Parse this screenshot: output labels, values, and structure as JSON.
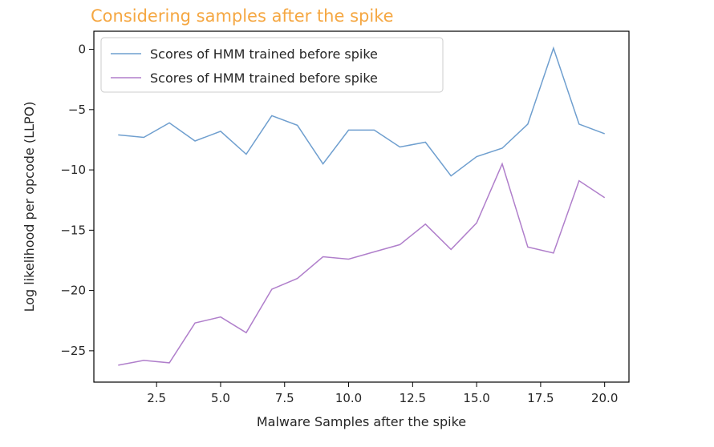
{
  "chart_data": {
    "type": "line",
    "title": "Considering samples after the spike",
    "title_color": "#f5a742",
    "xlabel": "Malware Samples after the spike",
    "ylabel": "Log likelihood per opcode (LLPO)",
    "xlim": [
      0.05,
      20.95
    ],
    "ylim": [
      -27.6,
      1.5
    ],
    "xticks": [
      2.5,
      5.0,
      7.5,
      10.0,
      12.5,
      15.0,
      17.5,
      20.0
    ],
    "xtick_labels": [
      "2.5",
      "5.0",
      "7.5",
      "10.0",
      "12.5",
      "15.0",
      "17.5",
      "20.0"
    ],
    "yticks": [
      0,
      -5,
      -10,
      -15,
      -20,
      -25
    ],
    "ytick_labels": [
      "0",
      "−5",
      "−10",
      "−15",
      "−20",
      "−25"
    ],
    "grid": false,
    "legend_position": "top-left",
    "x": [
      1,
      2,
      3,
      4,
      5,
      6,
      7,
      8,
      9,
      10,
      11,
      12,
      13,
      14,
      15,
      16,
      17,
      18,
      19,
      20
    ],
    "series": [
      {
        "name": "Scores of HMM trained before spike",
        "color": "#6f9fcf",
        "values": [
          -7.1,
          -7.3,
          -6.1,
          -7.6,
          -6.8,
          -8.7,
          -5.5,
          -6.3,
          -9.5,
          -6.7,
          -6.7,
          -8.1,
          -7.7,
          -10.5,
          -8.9,
          -8.2,
          -6.2,
          0.1,
          -6.2,
          -7.0
        ]
      },
      {
        "name": "Scores of HMM trained before spike",
        "color": "#b07fcb",
        "values": [
          -26.2,
          -25.8,
          -26.0,
          -22.7,
          -22.2,
          -23.5,
          -19.9,
          -19.0,
          -17.2,
          -17.4,
          -16.8,
          -16.2,
          -14.5,
          -16.6,
          -14.4,
          -9.5,
          -16.4,
          -16.9,
          -10.9,
          -12.3
        ]
      }
    ]
  }
}
